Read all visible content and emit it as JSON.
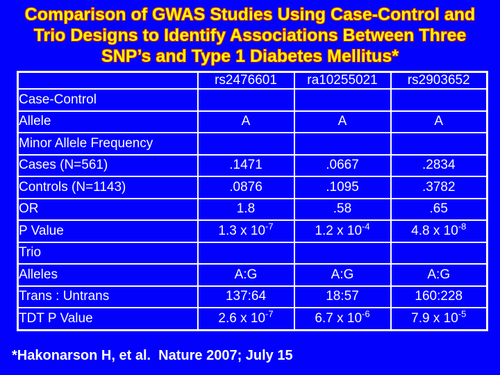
{
  "slide": {
    "title_lines": [
      "Comparison of GWAS Studies Using Case-Control and",
      "Trio Designs to Identify Associations Between Three",
      "SNP’s and Type 1 Diabetes Mellitus*"
    ],
    "footnote": "*Hakonarson H, et al.  Nature 2007; July 15",
    "colors": {
      "background": "#0202fc",
      "title_text": "#ffff00",
      "title_outline": "#c42800",
      "table_text": "#ffffff",
      "table_border": "#ffffff"
    }
  },
  "table": {
    "header": [
      "",
      "rs2476601",
      "ra10255021",
      "rs2903652"
    ],
    "rows": [
      {
        "label": "Case-Control",
        "indent": 0,
        "cells": [
          "",
          "",
          ""
        ]
      },
      {
        "label": "Allele",
        "indent": 1,
        "cells": [
          "A",
          "A",
          "A"
        ]
      },
      {
        "label": "Minor Allele Frequency",
        "indent": 1,
        "cells": [
          "",
          "",
          ""
        ]
      },
      {
        "label": "Cases (N=561)",
        "indent": 2,
        "cells": [
          ".1471",
          ".0667",
          ".2834"
        ]
      },
      {
        "label": "Controls (N=1143)",
        "indent": 2,
        "cells": [
          ".0876",
          ".1095",
          ".3782"
        ]
      },
      {
        "label": "OR",
        "indent": 1,
        "cells": [
          "1.8",
          ".58",
          ".65"
        ]
      },
      {
        "label": "P Value",
        "indent": 1,
        "cells": [
          "1.3 x 10^-7",
          "1.2 x 10^-4",
          "4.8 x 10^-8"
        ]
      },
      {
        "label": "Trio",
        "indent": 0,
        "cells": [
          "",
          "",
          ""
        ]
      },
      {
        "label": "Alleles",
        "indent": 1,
        "cells": [
          "A:G",
          "A:G",
          "A:G"
        ]
      },
      {
        "label": "Trans : Untrans",
        "indent": 1,
        "cells": [
          "137:64",
          "18:57",
          "160:228"
        ]
      },
      {
        "label": "TDT P Value",
        "indent": 1,
        "cells": [
          "2.6 x 10^-7",
          "6.7 x 10^-6",
          "7.9 x 10^-5"
        ]
      }
    ]
  }
}
